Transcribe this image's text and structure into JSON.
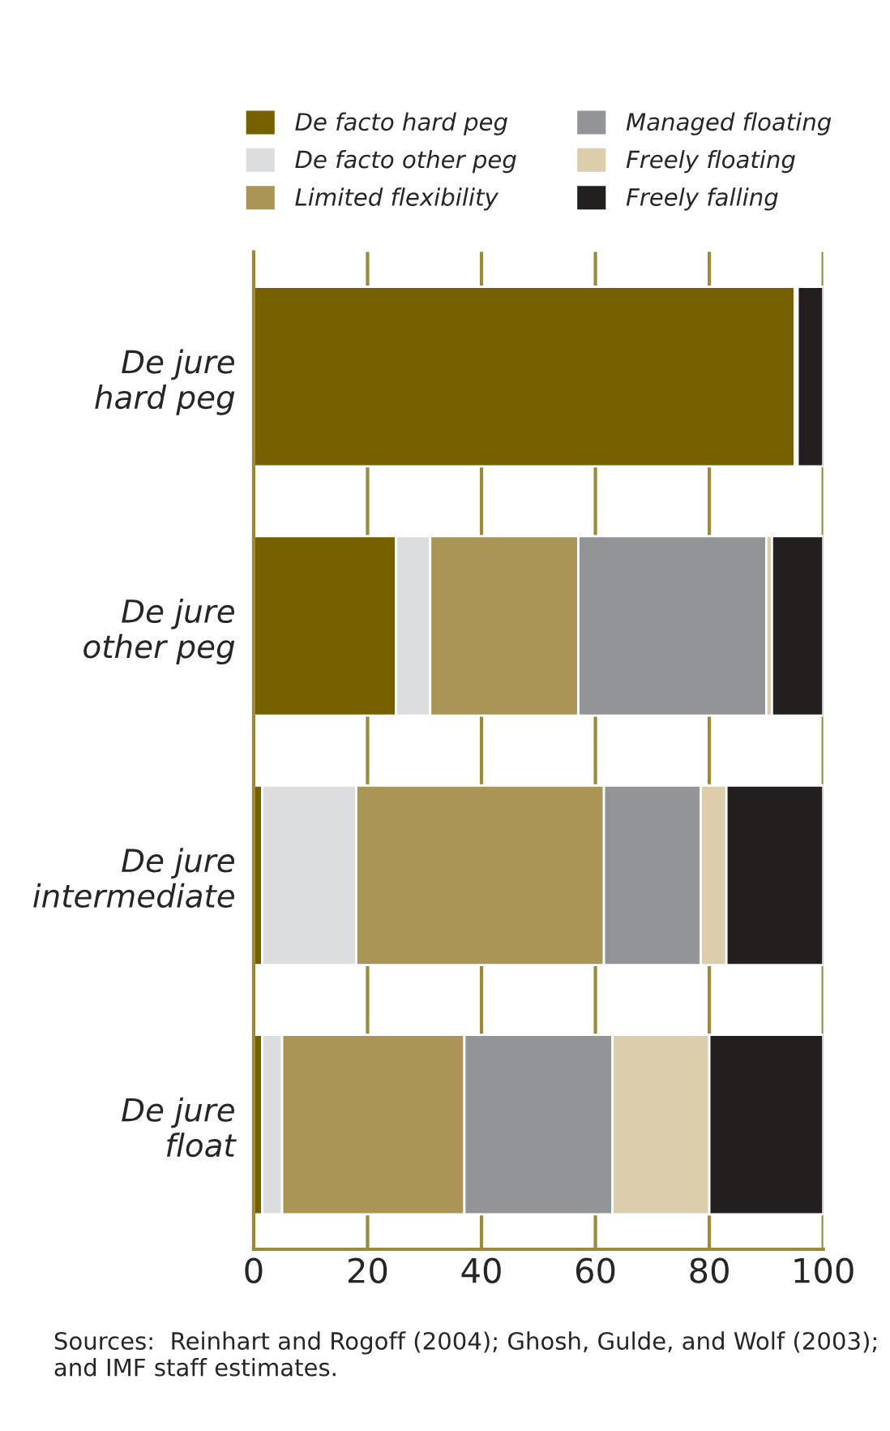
{
  "chart_data": {
    "type": "bar",
    "orientation": "horizontal",
    "stacked": true,
    "categories": [
      "De jure\nhard peg",
      "De jure\nother peg",
      "De jure\nintermediate",
      "De jure\nfloat"
    ],
    "series": [
      {
        "name": "De facto hard peg",
        "color": "#776000",
        "values": [
          95,
          25,
          1.5,
          1.5
        ]
      },
      {
        "name": "De facto other peg",
        "color": "#dcdddf",
        "values": [
          0.5,
          6,
          16.5,
          3.5
        ]
      },
      {
        "name": "Limited flexibility",
        "color": "#aa9557",
        "values": [
          0,
          26,
          43.5,
          32
        ]
      },
      {
        "name": "Managed floating",
        "color": "#939497",
        "values": [
          0,
          33,
          17,
          26
        ]
      },
      {
        "name": "Freely floating",
        "color": "#dccead",
        "values": [
          0,
          1,
          4.5,
          17
        ]
      },
      {
        "name": "Freely falling",
        "color": "#231f1f",
        "values": [
          4.5,
          9,
          17,
          20
        ]
      }
    ],
    "xlim": [
      0,
      100
    ],
    "xticks": [
      0,
      20,
      40,
      60,
      80,
      100
    ],
    "grid": "x",
    "legend": "top",
    "annotations": [
      "Sources:  Reinhart and Rogoff (2004); Ghosh, Gulde, and Wolf (2003); and IMF staff estimates."
    ]
  }
}
